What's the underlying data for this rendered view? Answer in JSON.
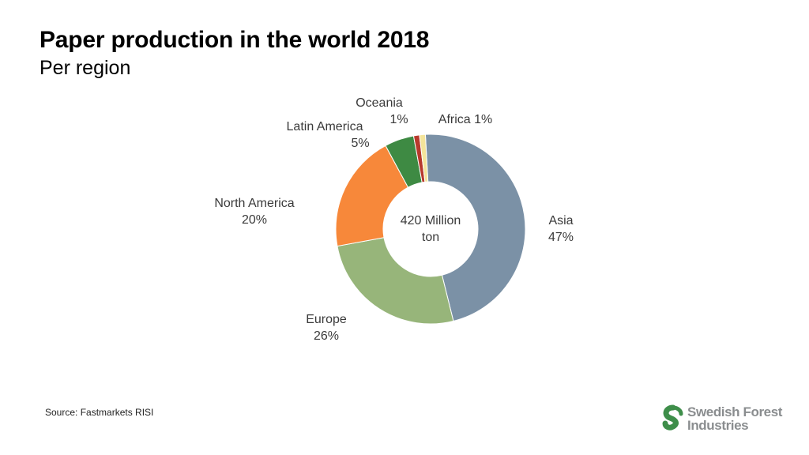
{
  "slide": {
    "title": "Paper production in the world 2018",
    "subtitle": "Per region",
    "source": "Source: Fastmarkets RISI"
  },
  "logo": {
    "line1": "Swedish Forest",
    "line2": "Industries",
    "icon": "leaf-s-icon",
    "color": "#3e8e4a"
  },
  "chart_data": {
    "type": "pie",
    "donut": true,
    "center_label": [
      "420 Million",
      "ton"
    ],
    "series": [
      {
        "name": "Asia",
        "value": 47,
        "label": "47%",
        "color": "#7b91a6"
      },
      {
        "name": "Europe",
        "value": 26,
        "label": "26%",
        "color": "#97b57a"
      },
      {
        "name": "North America",
        "value": 20,
        "label": "20%",
        "color": "#f7883a"
      },
      {
        "name": "Latin America",
        "value": 5,
        "label": "5%",
        "color": "#3e8a43"
      },
      {
        "name": "Oceania",
        "value": 1,
        "label": "1%",
        "color": "#b8392c"
      },
      {
        "name": "Africa",
        "value": 1,
        "label": "1%",
        "color": "#f4e49a"
      }
    ]
  }
}
